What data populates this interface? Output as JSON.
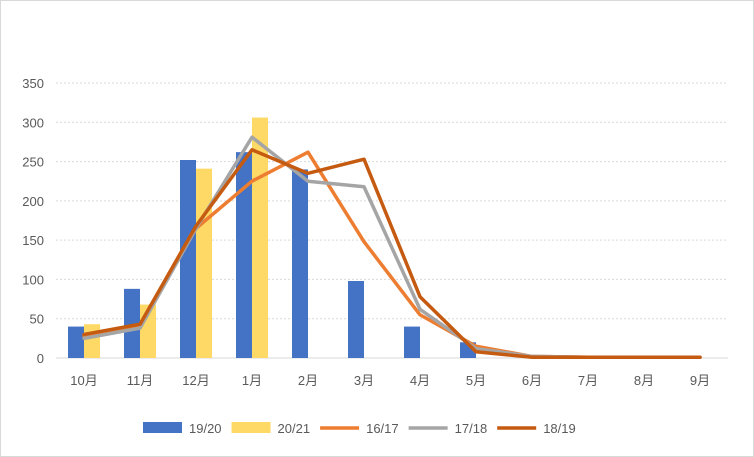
{
  "chart_data": {
    "type": "bar+line",
    "title": "",
    "xlabel": "",
    "ylabel": "",
    "ylim": [
      0,
      350
    ],
    "yticks": [
      0,
      50,
      100,
      150,
      200,
      250,
      300,
      350
    ],
    "grid": true,
    "legend": "bottom",
    "categories": [
      "10月",
      "11月",
      "12月",
      "1月",
      "2月",
      "3月",
      "4月",
      "5月",
      "6月",
      "7月",
      "8月",
      "9月"
    ],
    "bar_series": [
      {
        "name": "19/20",
        "color": "#4472c4",
        "values": [
          40,
          88,
          252,
          262,
          240,
          98,
          40,
          20,
          0,
          0,
          0,
          0
        ]
      },
      {
        "name": "20/21",
        "color": "#ffd966",
        "values": [
          43,
          68,
          241,
          306,
          null,
          null,
          null,
          null,
          null,
          null,
          null,
          null
        ]
      }
    ],
    "line_series": [
      {
        "name": "16/17",
        "color": "#ed7d31",
        "values": [
          28,
          40,
          165,
          225,
          262,
          148,
          55,
          15,
          2,
          1,
          1,
          1
        ]
      },
      {
        "name": "17/18",
        "color": "#a5a5a5",
        "values": [
          25,
          38,
          165,
          281,
          225,
          218,
          62,
          12,
          2,
          1,
          1,
          1
        ]
      },
      {
        "name": "18/19",
        "color": "#c55a11",
        "values": [
          30,
          43,
          168,
          265,
          235,
          253,
          78,
          8,
          1,
          1,
          1,
          1
        ]
      }
    ]
  }
}
